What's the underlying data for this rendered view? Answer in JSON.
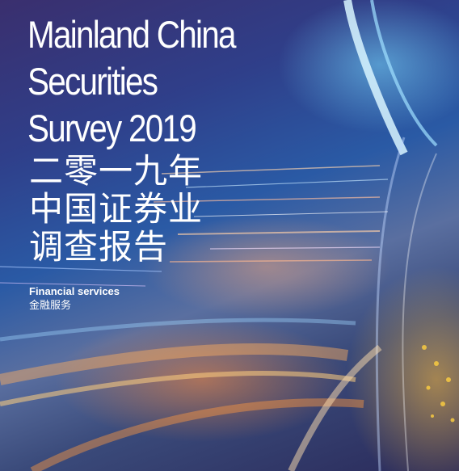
{
  "title": {
    "en_lines": [
      "Mainland China",
      "Securities",
      "Survey 2019"
    ],
    "cn_lines": [
      "二零一九年",
      "中国证券业",
      "调查报告"
    ]
  },
  "section": {
    "en": "Financial services",
    "cn": "金融服务"
  },
  "colors": {
    "text": "#ffffff",
    "background_top": "#3a2f6e",
    "background_mid": "#2a5aa5",
    "light_streak_warm": "#ffa050",
    "light_streak_cool": "#80dcff"
  }
}
